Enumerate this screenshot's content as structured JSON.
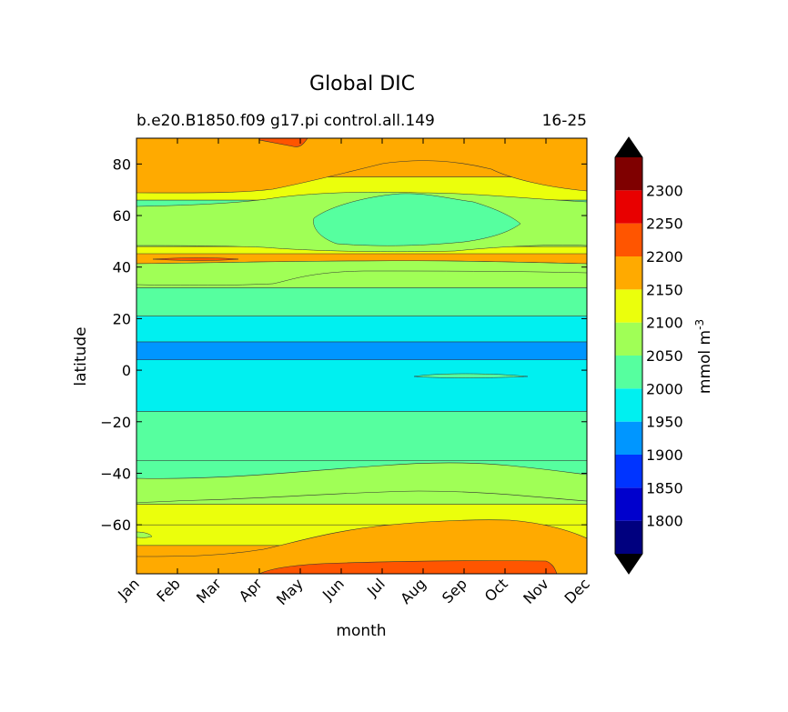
{
  "chart_data": {
    "type": "heatmap",
    "title": "Global DIC",
    "subtitle_left": "b.e20.B1850.f09 g17.pi control.all.149",
    "subtitle_right": "16-25",
    "xlabel": "month",
    "ylabel": "latitude",
    "x_tick_labels": [
      "Jan",
      "Feb",
      "Mar",
      "Apr",
      "May",
      "Jun",
      "Jul",
      "Aug",
      "Sep",
      "Oct",
      "Nov",
      "Dec"
    ],
    "y_ticks": [
      80,
      60,
      40,
      20,
      0,
      -20,
      -40,
      -60
    ],
    "y_tick_labels": [
      "80",
      "60",
      "40",
      "20",
      "0",
      "−20",
      "−40",
      "−60"
    ],
    "ylim": [
      -79,
      90
    ],
    "colorbar": {
      "label": "mmol m",
      "label_exp": "-3",
      "tick_labels": [
        "1800",
        "1850",
        "1900",
        "1950",
        "2000",
        "2050",
        "2100",
        "2150",
        "2200",
        "2250",
        "2300"
      ],
      "levels": [
        1750,
        1800,
        1850,
        1900,
        1950,
        2000,
        2050,
        2100,
        2150,
        2200,
        2250,
        2300,
        2350
      ],
      "band_colors": [
        "#00007f",
        "#0000cd",
        "#0034ff",
        "#0096ff",
        "#00f0f0",
        "#56ff9f",
        "#a0ff56",
        "#ebff0c",
        "#ffaa00",
        "#ff5500",
        "#e80000",
        "#7f0000"
      ],
      "under_color": "#000066",
      "over_color": "#7f0000",
      "extend": "both"
    },
    "zonal_profile": {
      "latitude_band_edges": [
        -79,
        -76,
        -68,
        -60,
        -52,
        -43,
        -35,
        -16,
        4,
        11,
        21,
        32,
        41,
        45,
        48,
        56,
        66,
        75,
        90
      ],
      "band_levels_mmol_m3": [
        2225,
        2175,
        2125,
        2125,
        2075,
        2025,
        2025,
        1975,
        1925,
        1975,
        2025,
        2075,
        2175,
        2125,
        2075,
        2025,
        2125,
        2175
      ]
    }
  }
}
